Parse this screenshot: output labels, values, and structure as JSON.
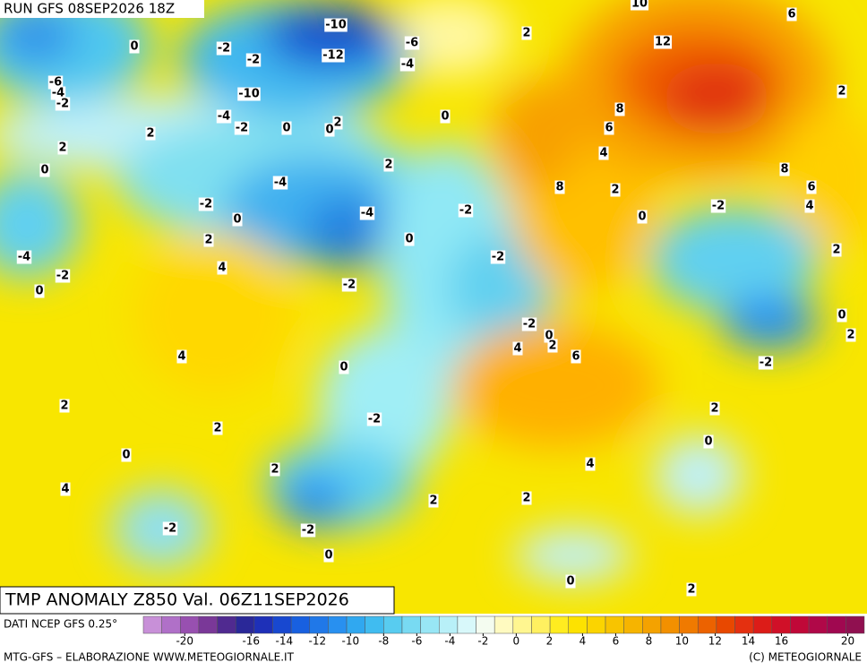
{
  "header": {
    "run": "RUN GFS 08SEP2026 18Z",
    "title": "TMP ANOMALY Z850 Val. 06Z11SEP2026"
  },
  "colorbar": {
    "source": "DATI NCEP GFS 0.25°",
    "lim": [
      -22.5,
      21
    ],
    "ticks": [
      -20,
      -16,
      -14,
      -12,
      -10,
      -8,
      -6,
      -4,
      -2,
      0,
      2,
      4,
      6,
      8,
      10,
      12,
      14,
      16,
      20
    ],
    "colors": [
      "#c890d8",
      "#b070c8",
      "#9850b0",
      "#7a3898",
      "#502a90",
      "#2a2898",
      "#1e30b8",
      "#1848d0",
      "#1860e0",
      "#2078e8",
      "#2890f0",
      "#30a8f0",
      "#40bcf0",
      "#58ccf0",
      "#78daf2",
      "#98e6f5",
      "#b8f0f8",
      "#d8f8fa",
      "#f4fcf0",
      "#fffac0",
      "#fff690",
      "#fff060",
      "#ffec20",
      "#fde200",
      "#fbd400",
      "#f8c400",
      "#f6b400",
      "#f4a200",
      "#f29000",
      "#f07a00",
      "#ec6200",
      "#e84800",
      "#e43010",
      "#dc1c18",
      "#d01028",
      "#c00838",
      "#b00848",
      "#a00850",
      "#901050"
    ]
  },
  "map_labels": [
    0,
    -2,
    -2,
    -10,
    -12,
    -6,
    -4,
    -6,
    -4,
    -2,
    -10,
    -4,
    -2,
    0,
    2,
    0,
    2,
    2,
    0,
    0,
    2,
    -4,
    -2,
    0,
    -4,
    2,
    0,
    -2,
    -2,
    -4,
    -2,
    0,
    4,
    -2,
    -2,
    0,
    4,
    2,
    6,
    4,
    0,
    2,
    2,
    -2,
    0,
    2,
    4,
    2,
    2,
    4,
    -2,
    -2,
    0,
    0,
    2,
    10,
    12,
    6,
    2,
    8,
    6,
    4,
    8,
    2,
    0,
    -2,
    8,
    6,
    4,
    2,
    0,
    2,
    -2,
    2,
    0,
    2
  ],
  "footer": {
    "left": "MTG-GFS – ELABORAZIONE WWW.METEOGIORNALE.IT",
    "right": "(C) METEOGIORNALE"
  }
}
